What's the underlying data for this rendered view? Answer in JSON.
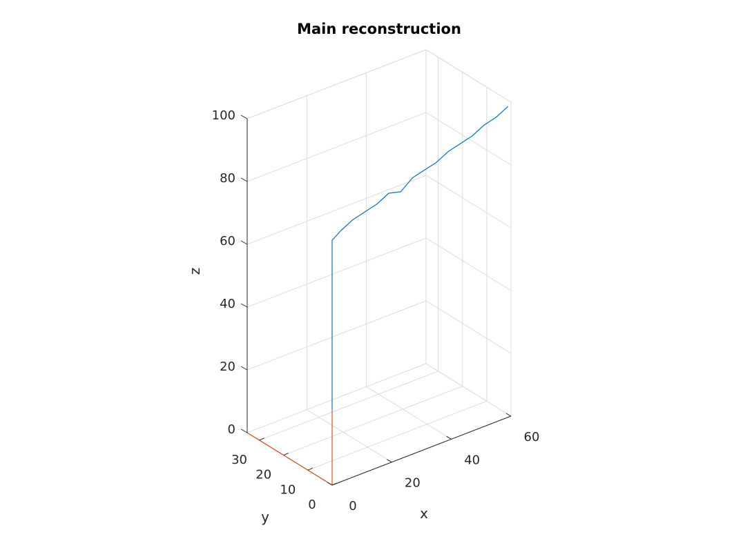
{
  "chart_data": {
    "type": "line",
    "title": "Main reconstruction",
    "xlabel": "x",
    "ylabel": "y",
    "zlabel": "z",
    "xlim": [
      0,
      60
    ],
    "ylim": [
      0,
      35
    ],
    "zlim": [
      0,
      100
    ],
    "xticks": [
      "0",
      "20",
      "40",
      "60"
    ],
    "yticks": [
      "0",
      "10",
      "20",
      "30"
    ],
    "zticks": [
      "0",
      "20",
      "40",
      "60",
      "80",
      "100"
    ],
    "grid": true,
    "series": [
      {
        "color": "#0072BD",
        "x": [
          0,
          0,
          0,
          0,
          0,
          0,
          0,
          3,
          7,
          11,
          15,
          19,
          23,
          27,
          31,
          35,
          39,
          43,
          47,
          51,
          55,
          59
        ],
        "y": [
          0,
          0,
          0,
          0,
          0,
          0,
          0,
          0,
          0,
          0,
          0,
          0,
          0,
          0,
          0,
          0,
          0,
          0,
          0,
          0,
          0,
          0
        ],
        "z": [
          24,
          30,
          40,
          50,
          60,
          70,
          78,
          80,
          82,
          83,
          84,
          86,
          85,
          88,
          89,
          90,
          92,
          93,
          94,
          96,
          97,
          99
        ]
      },
      {
        "color": "#D95319",
        "x": [
          0,
          0,
          0,
          0,
          0,
          0,
          0,
          0,
          0,
          0,
          0
        ],
        "y": [
          35,
          30,
          25,
          20,
          15,
          10,
          5,
          0,
          0,
          0,
          0
        ],
        "z": [
          0,
          0,
          0,
          0,
          0,
          0,
          0,
          0,
          8,
          16,
          24
        ]
      }
    ]
  }
}
